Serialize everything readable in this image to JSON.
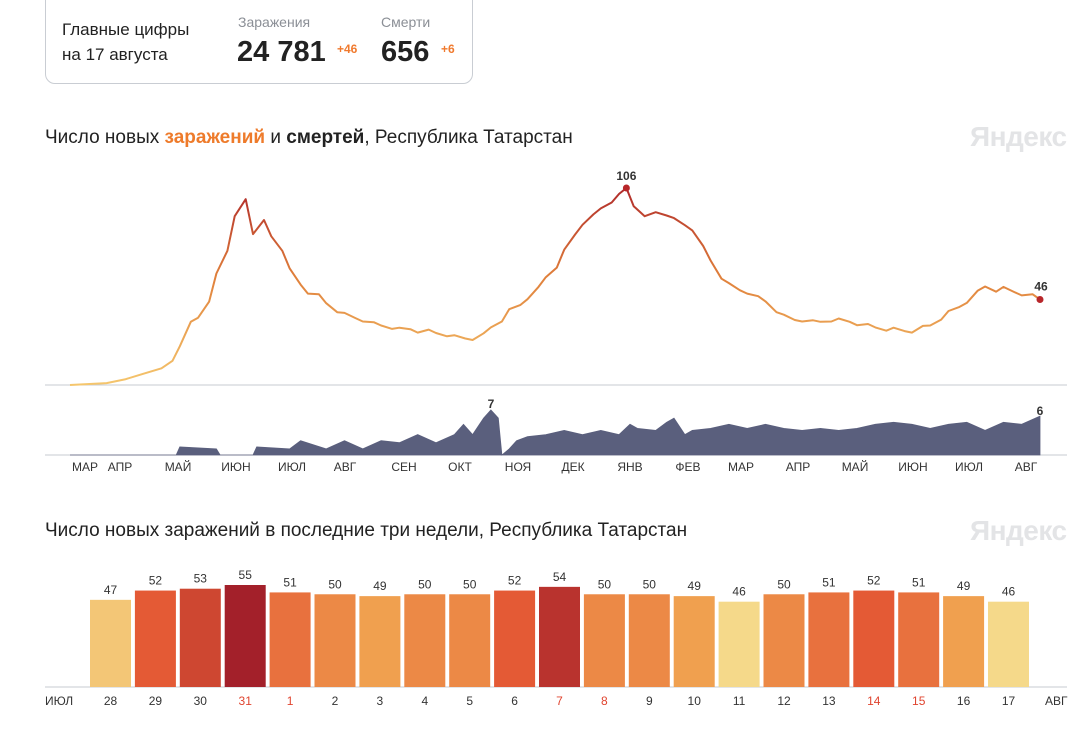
{
  "summary": {
    "title_line1": "Главные цифры",
    "title_line2": "на 17 августа",
    "infections_label": "Заражения",
    "infections_value": "24 781",
    "infections_delta": "+46",
    "deaths_label": "Смерти",
    "deaths_value": "656",
    "deaths_delta": "+6"
  },
  "chart1": {
    "title_prefix": "Число новых ",
    "title_infections": "заражений",
    "title_and": " и ",
    "title_deaths": "смертей",
    "title_suffix": ", Республика Татарстан",
    "brand": "Яндекс"
  },
  "chart2": {
    "title": "Число новых заражений в последние три недели, Республика Татарстан",
    "brand": "Яндекс",
    "month_start": "ИЮЛ",
    "month_end": "АВГ"
  },
  "colors": {
    "infection_low": "#f5c66d",
    "infection_high": "#b02a2a",
    "deaths": "#5a5f7d",
    "weekend_label": "#e0442f",
    "peak_dot": "#b8262a"
  },
  "chart_data": [
    {
      "type": "area",
      "title": "Число новых заражений и смертей, Республика Татарстан",
      "x_ticks": [
        "МАР",
        "АПР",
        "МАЙ",
        "ИЮН",
        "ИЮЛ",
        "АВГ",
        "СЕН",
        "ОКТ",
        "НОЯ",
        "ДЕК",
        "ЯНВ",
        "ФЕВ",
        "МАР",
        "АПР",
        "МАЙ",
        "ИЮН",
        "ИЮЛ",
        "АВГ"
      ],
      "infections": {
        "max_label": "106",
        "last_label": "46",
        "ylim": [
          0,
          115
        ],
        "points": [
          [
            0,
            0
          ],
          [
            2,
            1
          ],
          [
            3,
            3
          ],
          [
            4,
            6
          ],
          [
            5,
            9
          ],
          [
            5.6,
            13
          ],
          [
            6,
            20
          ],
          [
            6.6,
            34
          ],
          [
            7,
            37
          ],
          [
            7.6,
            44
          ],
          [
            8,
            60
          ],
          [
            8.6,
            73
          ],
          [
            9,
            90
          ],
          [
            9.6,
            100
          ],
          [
            10,
            82
          ],
          [
            10.6,
            88
          ],
          [
            11,
            80
          ],
          [
            11.6,
            73
          ],
          [
            12,
            62
          ],
          [
            12.6,
            54
          ],
          [
            13,
            50
          ],
          [
            13.6,
            48
          ],
          [
            14,
            44
          ],
          [
            14.6,
            40
          ],
          [
            15,
            38
          ],
          [
            15.6,
            36
          ],
          [
            16,
            35
          ],
          [
            16.6,
            33
          ],
          [
            17,
            32
          ],
          [
            17.6,
            31
          ],
          [
            18,
            30
          ],
          [
            18.6,
            30
          ],
          [
            19,
            29
          ],
          [
            19.6,
            29
          ],
          [
            20,
            28
          ],
          [
            20.6,
            27
          ],
          [
            21,
            26
          ],
          [
            21.6,
            25
          ],
          [
            22,
            25
          ],
          [
            22.6,
            27
          ],
          [
            23,
            31
          ],
          [
            23.6,
            35
          ],
          [
            24,
            40
          ],
          [
            24.6,
            43
          ],
          [
            25,
            47
          ],
          [
            25.6,
            52
          ],
          [
            26,
            58
          ],
          [
            26.6,
            64
          ],
          [
            27,
            72
          ],
          [
            27.6,
            81
          ],
          [
            28,
            87
          ],
          [
            28.6,
            91
          ],
          [
            29,
            95
          ],
          [
            29.6,
            99
          ],
          [
            30,
            102
          ],
          [
            30.4,
            106
          ],
          [
            30.8,
            97
          ],
          [
            31.4,
            90
          ],
          [
            32,
            93
          ],
          [
            32.6,
            92
          ],
          [
            33,
            89
          ],
          [
            33.6,
            86
          ],
          [
            34,
            84
          ],
          [
            34.6,
            74
          ],
          [
            35,
            67
          ],
          [
            35.6,
            58
          ],
          [
            36,
            54
          ],
          [
            36.6,
            51
          ],
          [
            37,
            50
          ],
          [
            37.6,
            47
          ],
          [
            38,
            45
          ],
          [
            38.6,
            40
          ],
          [
            39,
            37
          ],
          [
            39.6,
            35
          ],
          [
            40,
            35
          ],
          [
            40.6,
            34
          ],
          [
            41,
            34
          ],
          [
            41.6,
            35
          ],
          [
            42,
            35
          ],
          [
            42.6,
            34
          ],
          [
            43,
            33
          ],
          [
            43.6,
            32
          ],
          [
            44,
            31
          ],
          [
            44.6,
            30
          ],
          [
            45,
            30
          ],
          [
            45.6,
            29
          ],
          [
            46,
            29
          ],
          [
            46.6,
            31
          ],
          [
            47,
            32
          ],
          [
            47.6,
            36
          ],
          [
            48,
            39
          ],
          [
            48.6,
            42
          ],
          [
            49,
            45
          ],
          [
            49.6,
            50
          ],
          [
            50,
            53
          ],
          [
            50.6,
            51
          ],
          [
            51,
            52
          ],
          [
            51.6,
            50
          ],
          [
            52,
            49
          ],
          [
            52.6,
            48
          ],
          [
            53,
            46
          ]
        ]
      },
      "deaths": {
        "max_label": "7",
        "last_label": "6",
        "ylim": [
          0,
          8
        ],
        "points": [
          [
            0,
            0
          ],
          [
            5.8,
            0
          ],
          [
            6,
            1
          ],
          [
            8,
            1
          ],
          [
            8.2,
            0
          ],
          [
            10,
            0
          ],
          [
            10.2,
            1
          ],
          [
            12,
            1
          ],
          [
            12.6,
            2
          ],
          [
            14,
            1
          ],
          [
            15,
            2
          ],
          [
            16,
            1
          ],
          [
            17,
            2
          ],
          [
            18,
            2
          ],
          [
            19,
            3
          ],
          [
            20,
            2
          ],
          [
            21,
            3
          ],
          [
            21.5,
            5
          ],
          [
            22,
            3
          ],
          [
            22.6,
            6
          ],
          [
            23,
            7
          ],
          [
            23.4,
            6
          ],
          [
            23.6,
            0
          ],
          [
            24,
            1
          ],
          [
            24.4,
            2
          ],
          [
            25,
            3
          ],
          [
            26,
            3
          ],
          [
            27,
            4
          ],
          [
            28,
            3
          ],
          [
            29,
            4
          ],
          [
            30,
            3
          ],
          [
            30.6,
            5
          ],
          [
            31,
            4
          ],
          [
            32,
            4
          ],
          [
            32.6,
            5
          ],
          [
            33,
            6
          ],
          [
            33.6,
            3
          ],
          [
            34,
            4
          ],
          [
            35,
            4
          ],
          [
            36,
            5
          ],
          [
            37,
            4
          ],
          [
            38,
            5
          ],
          [
            39,
            4
          ],
          [
            40,
            4
          ],
          [
            41,
            4
          ],
          [
            42,
            4
          ],
          [
            43,
            4
          ],
          [
            44,
            5
          ],
          [
            45,
            5
          ],
          [
            46,
            5
          ],
          [
            47,
            4
          ],
          [
            48,
            5
          ],
          [
            49,
            5
          ],
          [
            50,
            4
          ],
          [
            51,
            5
          ],
          [
            52,
            5
          ],
          [
            53,
            6
          ]
        ]
      }
    },
    {
      "type": "bar",
      "title": "Число новых заражений в последние три недели, Республика Татарстан",
      "categories": [
        "28",
        "29",
        "30",
        "31",
        "1",
        "2",
        "3",
        "4",
        "5",
        "6",
        "7",
        "8",
        "9",
        "10",
        "11",
        "12",
        "13",
        "14",
        "15",
        "16",
        "17"
      ],
      "values": [
        47,
        52,
        53,
        55,
        51,
        50,
        49,
        50,
        50,
        52,
        54,
        50,
        50,
        49,
        46,
        50,
        51,
        52,
        51,
        49,
        46
      ],
      "weekend_categories": [
        "31",
        "1",
        "7",
        "8",
        "14",
        "15"
      ],
      "ylim": [
        0,
        60
      ]
    }
  ]
}
